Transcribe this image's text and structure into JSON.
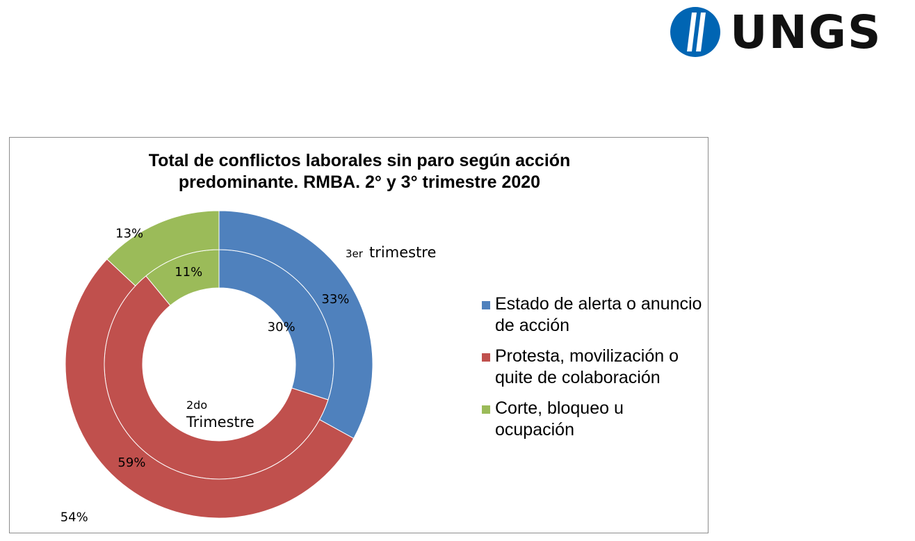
{
  "logo": {
    "text": "UNGS",
    "mark_color": "#0065b3"
  },
  "chart_data": {
    "type": "pie",
    "variant": "nested-donut",
    "title_lines": [
      "Total de conflictos laborales sin paro según acción",
      "predominante. RMBA. 2° y 3° trimestre 2020"
    ],
    "categories": [
      "Estado de alerta o anuncio de acción",
      "Protesta, movilización o quite de colaboración",
      "Corte, bloqueo u ocupación"
    ],
    "colors": [
      "#4f81bd",
      "#c0504d",
      "#9bbb59"
    ],
    "series": [
      {
        "name": "2do Trimestre",
        "ring": "inner",
        "values": [
          30,
          59,
          11
        ],
        "labels": [
          "30%",
          "59%",
          "11%"
        ]
      },
      {
        "name": "3er trimestre",
        "ring": "outer",
        "values": [
          33,
          54,
          13
        ],
        "labels": [
          "33%",
          "54%",
          "13%"
        ]
      }
    ],
    "annotations": {
      "outer_prefix": "3er",
      "outer_suffix": "trimestre",
      "inner_line1": "2do",
      "inner_line2": "Trimestre"
    },
    "legend_position": "right"
  }
}
